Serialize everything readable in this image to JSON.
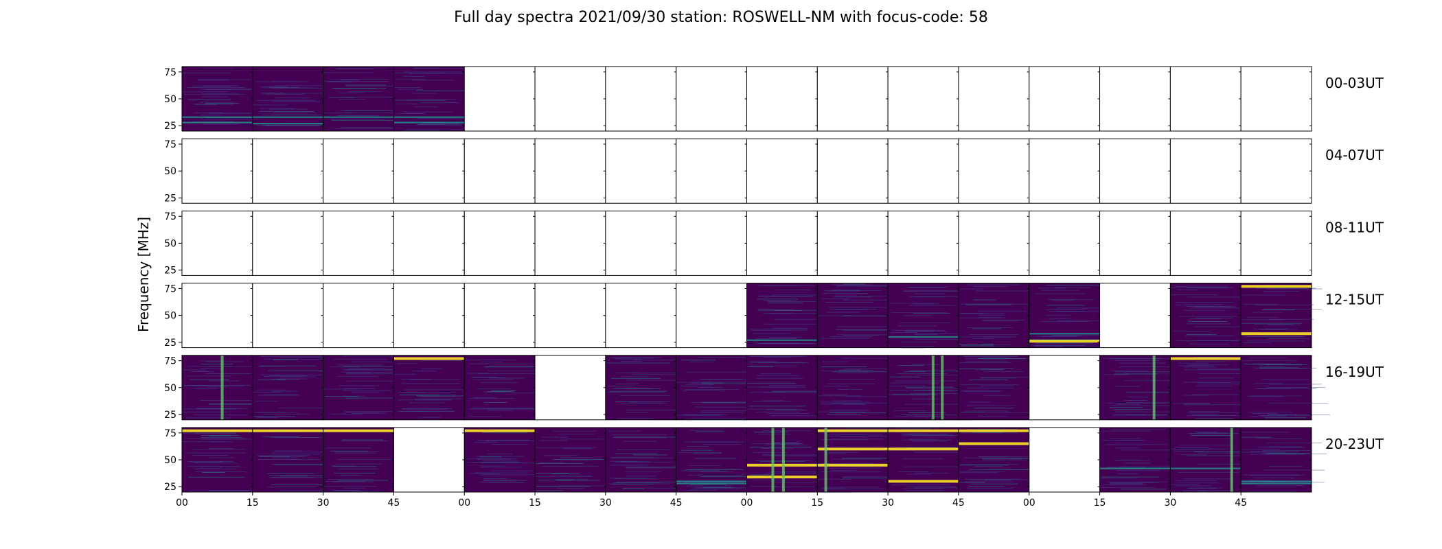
{
  "chart_data": {
    "type": "heatmap",
    "title": "Full day spectra 2021/09/30 station: ROSWELL-NM with focus-code: 58",
    "ylabel": "Frequency [MHz]",
    "xlabel": "",
    "y_ticks": [
      "75",
      "50",
      "25"
    ],
    "ylim": [
      20,
      80
    ],
    "x_ticks": [
      "00",
      "15",
      "30",
      "45",
      "00",
      "15",
      "30",
      "45",
      "00",
      "15",
      "30",
      "45",
      "00",
      "15",
      "30",
      "45"
    ],
    "colormap": [
      "#440154",
      "#3b528b",
      "#21918c",
      "#5ec962",
      "#fde725"
    ],
    "panels_per_row": 16,
    "rows": [
      {
        "label": "00-03UT",
        "panels": [
          {
            "has_data": true,
            "features": {
              "low_bands": [
                28,
                33
              ],
              "verticals": []
            }
          },
          {
            "has_data": true,
            "features": {
              "low_bands": [
                27,
                33
              ],
              "verticals": []
            }
          },
          {
            "has_data": true,
            "features": {
              "low_bands": [
                33
              ],
              "verticals": []
            }
          },
          {
            "has_data": true,
            "features": {
              "low_bands": [
                28,
                33
              ],
              "verticals": []
            }
          },
          {
            "has_data": false
          },
          {
            "has_data": false
          },
          {
            "has_data": false
          },
          {
            "has_data": false
          },
          {
            "has_data": false
          },
          {
            "has_data": false
          },
          {
            "has_data": false
          },
          {
            "has_data": false
          },
          {
            "has_data": false
          },
          {
            "has_data": false
          },
          {
            "has_data": false
          },
          {
            "has_data": false
          }
        ]
      },
      {
        "label": "04-07UT",
        "panels": [
          {
            "has_data": false
          },
          {
            "has_data": false
          },
          {
            "has_data": false
          },
          {
            "has_data": false
          },
          {
            "has_data": false
          },
          {
            "has_data": false
          },
          {
            "has_data": false
          },
          {
            "has_data": false
          },
          {
            "has_data": false
          },
          {
            "has_data": false
          },
          {
            "has_data": false
          },
          {
            "has_data": false
          },
          {
            "has_data": false
          },
          {
            "has_data": false
          },
          {
            "has_data": false
          },
          {
            "has_data": false
          }
        ]
      },
      {
        "label": "08-11UT",
        "panels": [
          {
            "has_data": false
          },
          {
            "has_data": false
          },
          {
            "has_data": false
          },
          {
            "has_data": false
          },
          {
            "has_data": false
          },
          {
            "has_data": false
          },
          {
            "has_data": false
          },
          {
            "has_data": false
          },
          {
            "has_data": false
          },
          {
            "has_data": false
          },
          {
            "has_data": false
          },
          {
            "has_data": false
          },
          {
            "has_data": false
          },
          {
            "has_data": false
          },
          {
            "has_data": false
          },
          {
            "has_data": false
          }
        ]
      },
      {
        "label": "12-15UT",
        "panels": [
          {
            "has_data": false
          },
          {
            "has_data": false
          },
          {
            "has_data": false
          },
          {
            "has_data": false
          },
          {
            "has_data": false
          },
          {
            "has_data": false
          },
          {
            "has_data": false
          },
          {
            "has_data": false
          },
          {
            "has_data": true,
            "features": {
              "low_bands": [
                27
              ],
              "verticals": []
            }
          },
          {
            "has_data": true,
            "features": {
              "low_bands": [],
              "verticals": []
            }
          },
          {
            "has_data": true,
            "features": {
              "low_bands": [
                30
              ],
              "verticals": []
            }
          },
          {
            "has_data": true,
            "features": {
              "low_bands": [],
              "verticals": []
            }
          },
          {
            "has_data": true,
            "features": {
              "low_bands": [
                27,
                33
              ],
              "bright_bands": [
                26
              ],
              "verticals": []
            }
          },
          {
            "has_data": false
          },
          {
            "has_data": true,
            "features": {
              "low_bands": [],
              "verticals": []
            }
          },
          {
            "has_data": true,
            "features": {
              "low_bands": [],
              "bright_bands": [
                33,
                77
              ],
              "verticals": []
            }
          }
        ]
      },
      {
        "label": "16-19UT",
        "panels": [
          {
            "has_data": true,
            "features": {
              "low_bands": [],
              "verticals": [
                0.55
              ]
            }
          },
          {
            "has_data": true,
            "features": {
              "low_bands": [],
              "verticals": []
            }
          },
          {
            "has_data": true,
            "features": {
              "low_bands": [],
              "verticals": []
            }
          },
          {
            "has_data": true,
            "features": {
              "low_bands": [],
              "bright_bands": [
                77
              ],
              "verticals": []
            }
          },
          {
            "has_data": true,
            "features": {
              "low_bands": [],
              "verticals": []
            }
          },
          {
            "has_data": false
          },
          {
            "has_data": true,
            "features": {
              "low_bands": [],
              "verticals": []
            }
          },
          {
            "has_data": true,
            "features": {
              "low_bands": [],
              "verticals": []
            }
          },
          {
            "has_data": true,
            "features": {
              "low_bands": [],
              "verticals": []
            }
          },
          {
            "has_data": true,
            "features": {
              "low_bands": [],
              "verticals": []
            }
          },
          {
            "has_data": true,
            "features": {
              "low_bands": [],
              "bright_bands": [],
              "verticals": [
                0.62,
                0.75
              ]
            }
          },
          {
            "has_data": true,
            "features": {
              "low_bands": [],
              "verticals": []
            }
          },
          {
            "has_data": false
          },
          {
            "has_data": true,
            "features": {
              "low_bands": [],
              "verticals": [
                0.75
              ]
            }
          },
          {
            "has_data": true,
            "features": {
              "low_bands": [],
              "bright_bands": [
                77
              ],
              "verticals": []
            }
          },
          {
            "has_data": true,
            "features": {
              "low_bands": [],
              "verticals": []
            }
          }
        ]
      },
      {
        "label": "20-23UT",
        "panels": [
          {
            "has_data": true,
            "features": {
              "low_bands": [],
              "bright_bands": [
                77
              ],
              "verticals": []
            }
          },
          {
            "has_data": true,
            "features": {
              "low_bands": [],
              "bright_bands": [
                77
              ],
              "verticals": []
            }
          },
          {
            "has_data": true,
            "features": {
              "low_bands": [],
              "bright_bands": [
                77
              ],
              "verticals": []
            }
          },
          {
            "has_data": false
          },
          {
            "has_data": true,
            "features": {
              "low_bands": [],
              "bright_bands": [
                77
              ],
              "verticals": []
            }
          },
          {
            "has_data": true,
            "features": {
              "low_bands": [],
              "verticals": []
            }
          },
          {
            "has_data": true,
            "features": {
              "low_bands": [],
              "verticals": []
            }
          },
          {
            "has_data": true,
            "features": {
              "low_bands": [
                28,
                30
              ],
              "verticals": []
            }
          },
          {
            "has_data": true,
            "features": {
              "low_bands": [],
              "bright_bands": [
                34,
                45
              ],
              "verticals": [
                0.35,
                0.5
              ]
            }
          },
          {
            "has_data": true,
            "features": {
              "low_bands": [],
              "bright_bands": [
                45,
                60,
                77
              ],
              "verticals": [
                0.1
              ]
            }
          },
          {
            "has_data": true,
            "features": {
              "low_bands": [],
              "bright_bands": [
                30,
                60,
                77
              ],
              "verticals": []
            }
          },
          {
            "has_data": true,
            "features": {
              "low_bands": [],
              "bright_bands": [
                65,
                77
              ],
              "verticals": []
            }
          },
          {
            "has_data": false
          },
          {
            "has_data": true,
            "features": {
              "low_bands": [
                42
              ],
              "verticals": []
            }
          },
          {
            "has_data": true,
            "features": {
              "low_bands": [
                42
              ],
              "bright_bands": [],
              "verticals": [
                0.85
              ]
            }
          },
          {
            "has_data": true,
            "features": {
              "low_bands": [
                30,
                28
              ],
              "verticals": []
            }
          }
        ]
      }
    ]
  }
}
